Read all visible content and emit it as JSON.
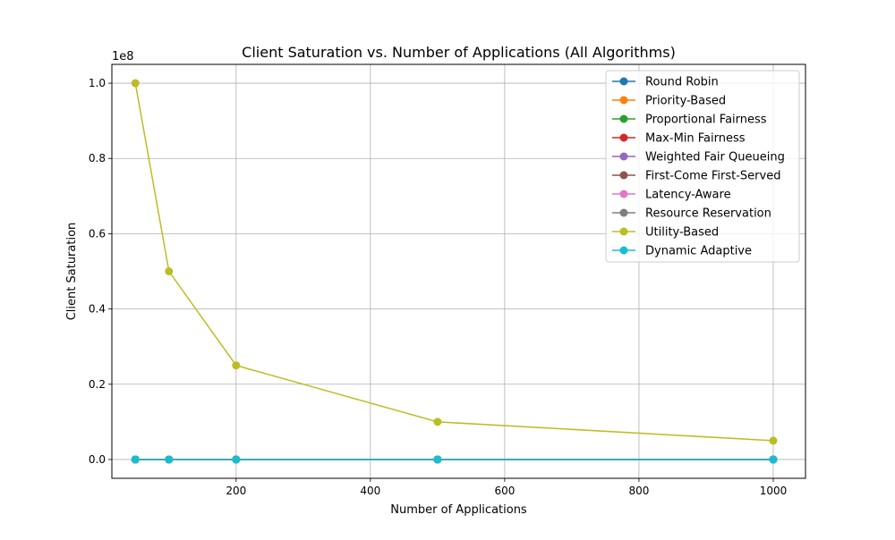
{
  "chart_data": {
    "type": "line",
    "title": "Client Saturation vs. Number of Applications (All Algorithms)",
    "xlabel": "Number of Applications",
    "ylabel": "Client Saturation",
    "y_scale_label": "1e8",
    "x_scale_factor": 1,
    "y_scale_factor": 100000000,
    "xlim": [
      15,
      1048
    ],
    "ylim": [
      -5000000,
      105000000
    ],
    "x_ticks": [
      200,
      400,
      600,
      800,
      1000
    ],
    "x_tick_labels": [
      "200",
      "400",
      "600",
      "800",
      "1000"
    ],
    "y_ticks": [
      0,
      20000000,
      40000000,
      60000000,
      80000000,
      100000000
    ],
    "y_tick_labels": [
      "0.0",
      "0.2",
      "0.4",
      "0.6",
      "0.8",
      "1.0"
    ],
    "grid": true,
    "legend_position": "top-right",
    "x": [
      50,
      100,
      200,
      500,
      1000
    ],
    "series": [
      {
        "name": "Round Robin",
        "color": "#1f77b4",
        "values": [
          0,
          0,
          0,
          0,
          0
        ]
      },
      {
        "name": "Priority-Based",
        "color": "#ff7f0e",
        "values": [
          0,
          0,
          0,
          0,
          0
        ]
      },
      {
        "name": "Proportional Fairness",
        "color": "#2ca02c",
        "values": [
          0,
          0,
          0,
          0,
          0
        ]
      },
      {
        "name": "Max-Min Fairness",
        "color": "#d62728",
        "values": [
          0,
          0,
          0,
          0,
          0
        ]
      },
      {
        "name": "Weighted Fair Queueing",
        "color": "#9467bd",
        "values": [
          0,
          0,
          0,
          0,
          0
        ]
      },
      {
        "name": "First-Come First-Served",
        "color": "#8c564b",
        "values": [
          0,
          0,
          0,
          0,
          0
        ]
      },
      {
        "name": "Latency-Aware",
        "color": "#e377c2",
        "values": [
          0,
          0,
          0,
          0,
          0
        ]
      },
      {
        "name": "Resource Reservation",
        "color": "#7f7f7f",
        "values": [
          0,
          0,
          0,
          0,
          0
        ]
      },
      {
        "name": "Utility-Based",
        "color": "#bcbd22",
        "values": [
          100000000,
          50000000,
          25000000,
          10000000,
          5000000
        ]
      },
      {
        "name": "Dynamic Adaptive",
        "color": "#17becf",
        "values": [
          0,
          0,
          0,
          0,
          0
        ]
      }
    ]
  }
}
